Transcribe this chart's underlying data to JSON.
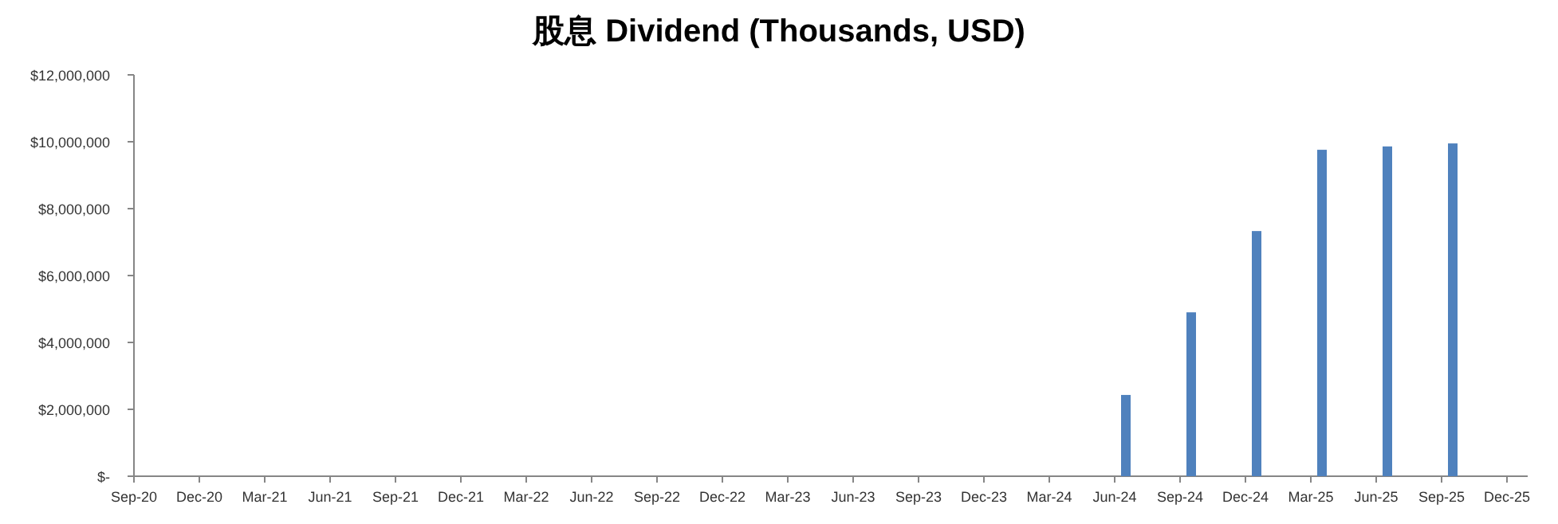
{
  "chart_data": {
    "type": "bar",
    "title": "股息 Dividend (Thousands, USD)",
    "categories": [
      "Sep-20",
      "Dec-20",
      "Mar-21",
      "Jun-21",
      "Sep-21",
      "Dec-21",
      "Mar-22",
      "Jun-22",
      "Sep-22",
      "Dec-22",
      "Mar-23",
      "Jun-23",
      "Sep-23",
      "Dec-23",
      "Mar-24",
      "Jun-24",
      "Sep-24",
      "Dec-24",
      "Mar-25",
      "Jun-25",
      "Sep-25",
      "Dec-25"
    ],
    "values": [
      null,
      null,
      null,
      null,
      null,
      null,
      null,
      null,
      null,
      null,
      null,
      null,
      null,
      null,
      null,
      2430000,
      4900000,
      7330000,
      9760000,
      9860000,
      9950000,
      null
    ],
    "color": "#4f81bd",
    "ylim": [
      0,
      12000000
    ],
    "yticks": [
      {
        "value": 0,
        "label": "$-"
      },
      {
        "value": 2000000,
        "label": "$2,000,000"
      },
      {
        "value": 4000000,
        "label": "$4,000,000"
      },
      {
        "value": 6000000,
        "label": "$6,000,000"
      },
      {
        "value": 8000000,
        "label": "$8,000,000"
      },
      {
        "value": 10000000,
        "label": "$10,000,000"
      },
      {
        "value": 12000000,
        "label": "$12,000,000"
      }
    ],
    "grid": false
  }
}
